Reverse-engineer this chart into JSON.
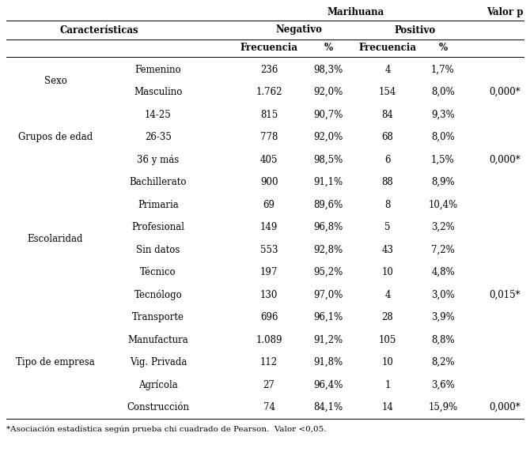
{
  "title_main": "Marihuana",
  "title_valor_p": "Valor p",
  "col_caracteristicas": "Características",
  "col_negativo": "Negativo",
  "col_positivo": "Positivo",
  "col_freq": "Frecuencia",
  "col_pct": "%",
  "footnote": "*Asociación estadística según prueba chi cuadrado de Pearson.  Valor <0,05.",
  "groups": [
    {
      "category": "Sexo",
      "subcategory": "Femenino",
      "neg_freq": "236",
      "neg_pct": "98,3%",
      "pos_freq": "4",
      "pos_pct": "1,7%",
      "valor_p": ""
    },
    {
      "category": "",
      "subcategory": "Masculino",
      "neg_freq": "1.762",
      "neg_pct": "92,0%",
      "pos_freq": "154",
      "pos_pct": "8,0%",
      "valor_p": "0,000*"
    },
    {
      "category": "Grupos de edad",
      "subcategory": "14-25",
      "neg_freq": "815",
      "neg_pct": "90,7%",
      "pos_freq": "84",
      "pos_pct": "9,3%",
      "valor_p": ""
    },
    {
      "category": "",
      "subcategory": "26-35",
      "neg_freq": "778",
      "neg_pct": "92,0%",
      "pos_freq": "68",
      "pos_pct": "8,0%",
      "valor_p": ""
    },
    {
      "category": "",
      "subcategory": "36 y más",
      "neg_freq": "405",
      "neg_pct": "98,5%",
      "pos_freq": "6",
      "pos_pct": "1,5%",
      "valor_p": "0,000*"
    },
    {
      "category": "Escolaridad",
      "subcategory": "Bachillerato",
      "neg_freq": "900",
      "neg_pct": "91,1%",
      "pos_freq": "88",
      "pos_pct": "8,9%",
      "valor_p": ""
    },
    {
      "category": "",
      "subcategory": "Primaria",
      "neg_freq": "69",
      "neg_pct": "89,6%",
      "pos_freq": "8",
      "pos_pct": "10,4%",
      "valor_p": ""
    },
    {
      "category": "",
      "subcategory": "Profesional",
      "neg_freq": "149",
      "neg_pct": "96,8%",
      "pos_freq": "5",
      "pos_pct": "3,2%",
      "valor_p": ""
    },
    {
      "category": "",
      "subcategory": "Sin datos",
      "neg_freq": "553",
      "neg_pct": "92,8%",
      "pos_freq": "43",
      "pos_pct": "7,2%",
      "valor_p": ""
    },
    {
      "category": "",
      "subcategory": "Técnico",
      "neg_freq": "197",
      "neg_pct": "95,2%",
      "pos_freq": "10",
      "pos_pct": "4,8%",
      "valor_p": ""
    },
    {
      "category": "",
      "subcategory": "Tecnólogo",
      "neg_freq": "130",
      "neg_pct": "97,0%",
      "pos_freq": "4",
      "pos_pct": "3,0%",
      "valor_p": "0,015*"
    },
    {
      "category": "Tipo de empresa",
      "subcategory": "Transporte",
      "neg_freq": "696",
      "neg_pct": "96,1%",
      "pos_freq": "28",
      "pos_pct": "3,9%",
      "valor_p": ""
    },
    {
      "category": "",
      "subcategory": "Manufactura",
      "neg_freq": "1.089",
      "neg_pct": "91,2%",
      "pos_freq": "105",
      "pos_pct": "8,8%",
      "valor_p": ""
    },
    {
      "category": "",
      "subcategory": "Vig. Privada",
      "neg_freq": "112",
      "neg_pct": "91,8%",
      "pos_freq": "10",
      "pos_pct": "8,2%",
      "valor_p": ""
    },
    {
      "category": "",
      "subcategory": "Agrícola",
      "neg_freq": "27",
      "neg_pct": "96,4%",
      "pos_freq": "1",
      "pos_pct": "3,6%",
      "valor_p": ""
    },
    {
      "category": "",
      "subcategory": "Construcción",
      "neg_freq": "74",
      "neg_pct": "84,1%",
      "pos_freq": "14",
      "pos_pct": "15,9%",
      "valor_p": "0,000*"
    }
  ],
  "bg_color": "#ffffff",
  "text_color": "#000000",
  "line_color": "#000000",
  "font_size": 8.5,
  "font_size_footnote": 7.5
}
